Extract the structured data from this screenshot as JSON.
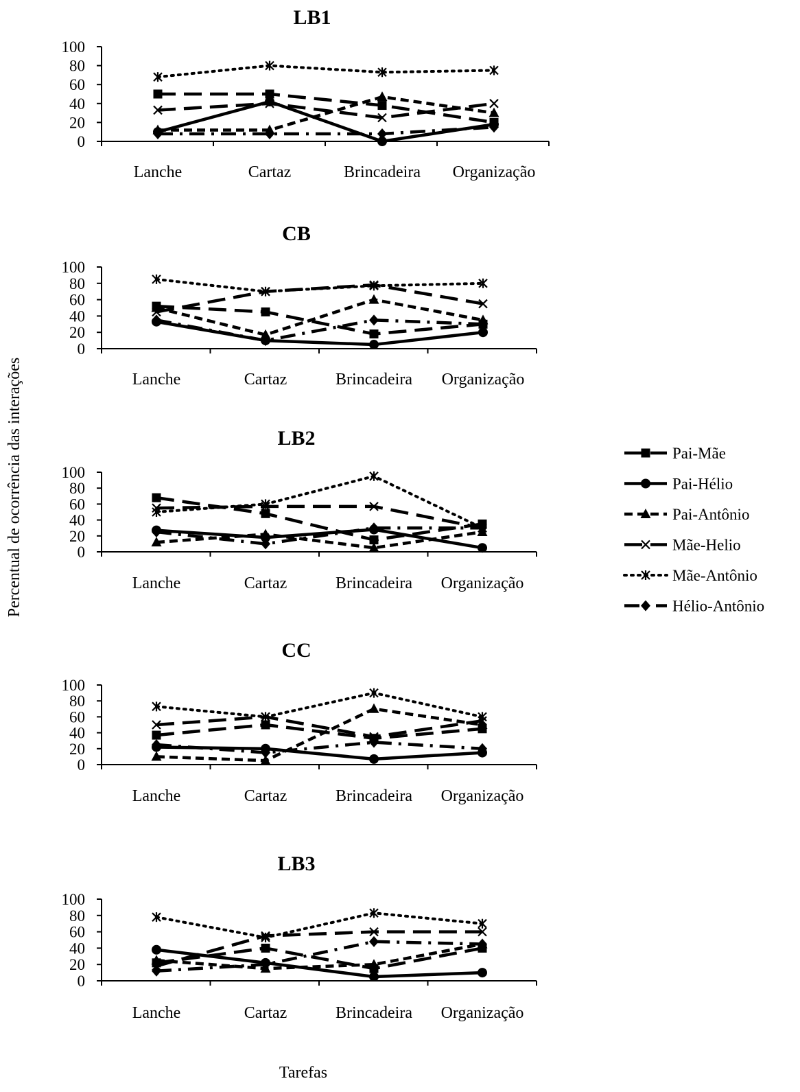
{
  "y_axis_label": "Percentual de ocorrência das interações",
  "x_axis_label": "Tarefas",
  "legend": [
    {
      "name": "Pai-Mãe",
      "marker": "square",
      "dash": "long-dash"
    },
    {
      "name": "Pai-Hélio",
      "marker": "circle",
      "dash": "solid"
    },
    {
      "name": "Pai-Antônio",
      "marker": "triangle",
      "dash": "short-dash"
    },
    {
      "name": "Mãe-Helio",
      "marker": "x",
      "dash": "long-dash"
    },
    {
      "name": "Mãe-Antônio",
      "marker": "asterisk",
      "dash": "dotted"
    },
    {
      "name": "Hélio-Antônio",
      "marker": "diamond",
      "dash": "dash-dot"
    }
  ],
  "chart_data": [
    {
      "type": "line",
      "title": "LB1",
      "categories": [
        "Lanche",
        "Cartaz",
        "Brincadeira",
        "Organização"
      ],
      "y_ticks": [
        "0",
        "20",
        "40",
        "60",
        "80",
        "100"
      ],
      "ylim": [
        0,
        100
      ],
      "series": [
        {
          "name": "Pai-Mãe",
          "values": [
            50,
            50,
            38,
            20
          ]
        },
        {
          "name": "Pai-Hélio",
          "values": [
            10,
            42,
            0,
            18
          ]
        },
        {
          "name": "Pai-Antônio",
          "values": [
            12,
            12,
            47,
            30
          ]
        },
        {
          "name": "Mãe-Helio",
          "values": [
            33,
            40,
            25,
            40
          ]
        },
        {
          "name": "Mãe-Antônio",
          "values": [
            68,
            80,
            73,
            75
          ]
        },
        {
          "name": "Hélio-Antônio",
          "values": [
            8,
            8,
            8,
            15
          ]
        }
      ]
    },
    {
      "type": "line",
      "title": "CB",
      "categories": [
        "Lanche",
        "Cartaz",
        "Brincadeira",
        "Organização"
      ],
      "y_ticks": [
        "0",
        "20",
        "40",
        "60",
        "80",
        "100"
      ],
      "ylim": [
        0,
        100
      ],
      "series": [
        {
          "name": "Pai-Mãe",
          "values": [
            52,
            45,
            18,
            30
          ]
        },
        {
          "name": "Pai-Hélio",
          "values": [
            33,
            10,
            5,
            20
          ]
        },
        {
          "name": "Pai-Antônio",
          "values": [
            50,
            17,
            60,
            35
          ]
        },
        {
          "name": "Mãe-Helio",
          "values": [
            45,
            70,
            78,
            55
          ]
        },
        {
          "name": "Mãe-Antônio",
          "values": [
            85,
            70,
            77,
            80
          ]
        },
        {
          "name": "Hélio-Antônio",
          "values": [
            35,
            10,
            35,
            30
          ]
        }
      ]
    },
    {
      "type": "line",
      "title": "LB2",
      "categories": [
        "Lanche",
        "Cartaz",
        "Brincadeira",
        "Organização"
      ],
      "y_ticks": [
        "0",
        "20",
        "40",
        "60",
        "80",
        "100"
      ],
      "ylim": [
        0,
        100
      ],
      "series": [
        {
          "name": "Pai-Mãe",
          "values": [
            68,
            48,
            15,
            35
          ]
        },
        {
          "name": "Pai-Hélio",
          "values": [
            27,
            18,
            28,
            5
          ]
        },
        {
          "name": "Pai-Antônio",
          "values": [
            12,
            22,
            5,
            25
          ]
        },
        {
          "name": "Mãe-Helio",
          "values": [
            55,
            57,
            57,
            30
          ]
        },
        {
          "name": "Mãe-Antônio",
          "values": [
            50,
            60,
            95,
            30
          ]
        },
        {
          "name": "Hélio-Antônio",
          "values": [
            25,
            10,
            30,
            30
          ]
        }
      ]
    },
    {
      "type": "line",
      "title": "CC",
      "categories": [
        "Lanche",
        "Cartaz",
        "Brincadeira",
        "Organização"
      ],
      "y_ticks": [
        "0",
        "20",
        "40",
        "60",
        "80",
        "100"
      ],
      "ylim": [
        0,
        100
      ],
      "series": [
        {
          "name": "Pai-Mãe",
          "values": [
            37,
            50,
            33,
            45
          ]
        },
        {
          "name": "Pai-Hélio",
          "values": [
            22,
            20,
            7,
            15
          ]
        },
        {
          "name": "Pai-Antônio",
          "values": [
            10,
            5,
            70,
            50
          ]
        },
        {
          "name": "Mãe-Helio",
          "values": [
            50,
            60,
            35,
            55
          ]
        },
        {
          "name": "Mãe-Antônio",
          "values": [
            73,
            60,
            90,
            60
          ]
        },
        {
          "name": "Hélio-Antônio",
          "values": [
            25,
            15,
            28,
            20
          ]
        }
      ]
    },
    {
      "type": "line",
      "title": "LB3",
      "categories": [
        "Lanche",
        "Cartaz",
        "Brincadeira",
        "Organização"
      ],
      "y_ticks": [
        "0",
        "20",
        "40",
        "60",
        "80",
        "100"
      ],
      "ylim": [
        0,
        100
      ],
      "series": [
        {
          "name": "Pai-Mãe",
          "values": [
            22,
            40,
            15,
            40
          ]
        },
        {
          "name": "Pai-Hélio",
          "values": [
            38,
            22,
            5,
            10
          ]
        },
        {
          "name": "Pai-Antônio",
          "values": [
            25,
            15,
            20,
            45
          ]
        },
        {
          "name": "Mãe-Helio",
          "values": [
            18,
            55,
            60,
            60
          ]
        },
        {
          "name": "Mãe-Antônio",
          "values": [
            78,
            53,
            83,
            70
          ]
        },
        {
          "name": "Hélio-Antônio",
          "values": [
            12,
            20,
            48,
            45
          ]
        }
      ]
    }
  ]
}
